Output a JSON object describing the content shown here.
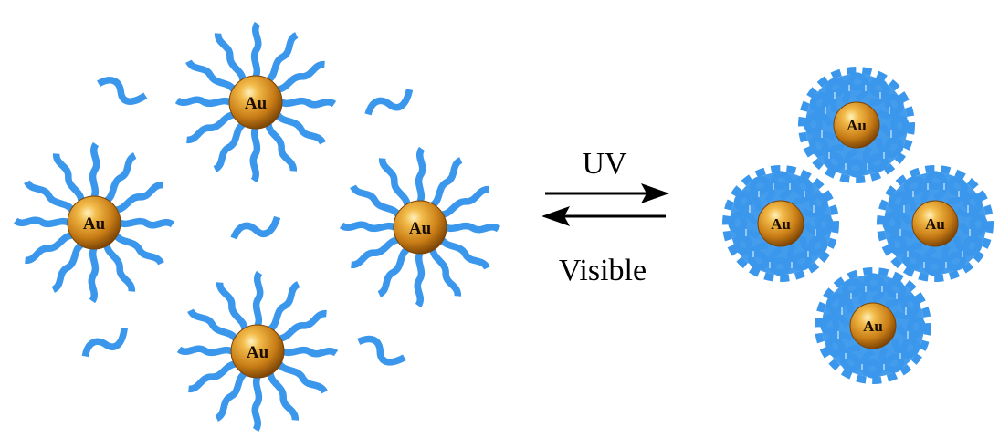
{
  "particle_label": "Au",
  "arrows": {
    "forward_label": "UV",
    "reverse_label": "Visible"
  },
  "colors": {
    "ligand": "#3a97ec",
    "gold_core": "#d18a1c",
    "gold_highlight": "#ffe9a6",
    "gold_edge": "#7a4205",
    "arrow": "#000000"
  }
}
